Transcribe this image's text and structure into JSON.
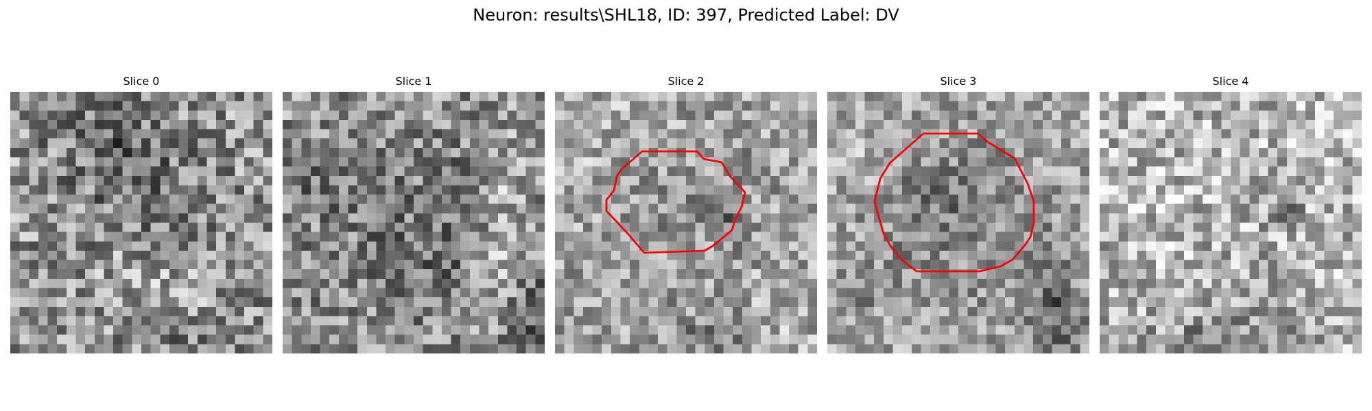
{
  "figure": {
    "title": "Neuron: results\\SHL18, ID: 397, Predicted Label: DV"
  },
  "slices": [
    {
      "title": "Slice 0",
      "contour": false,
      "image": "noisy-grayscale-cell-slice"
    },
    {
      "title": "Slice 1",
      "contour": false,
      "image": "noisy-grayscale-cell-slice"
    },
    {
      "title": "Slice 2",
      "contour": true,
      "contour_color": "#ff0000",
      "image": "noisy-grayscale-cell-slice"
    },
    {
      "title": "Slice 3",
      "contour": true,
      "contour_color": "#ff0000",
      "image": "noisy-grayscale-cell-slice"
    },
    {
      "title": "Slice 4",
      "contour": false,
      "image": "noisy-grayscale-cell-slice"
    }
  ]
}
